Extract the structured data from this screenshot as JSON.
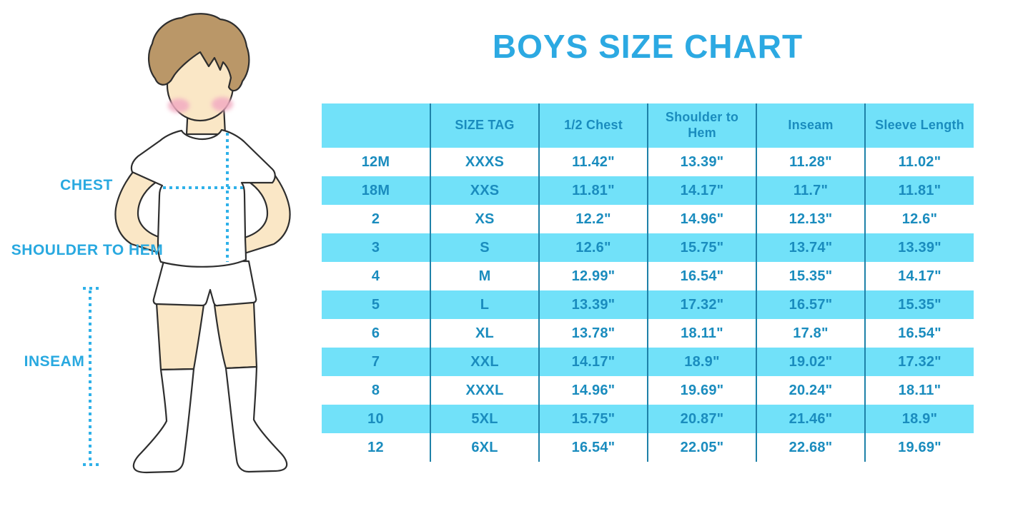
{
  "title": "BOYS SIZE CHART",
  "colors": {
    "title_text": "#2CA9E2",
    "label_text": "#29A9E0",
    "table_text": "#1A8CBE",
    "row_stripe": "#71E1F9",
    "column_divider": "#1E81A8",
    "dotted_line": "#2FB1E9",
    "skin": "#FAE7C6",
    "hair": "#BA9768",
    "blush": "#F2ACC2",
    "outline": "#2e2e2e"
  },
  "figure": {
    "description": "faceless cartoon boy in white t-shirt, shorts and knee socks with dotted measurement guides",
    "labels": [
      {
        "id": "chest",
        "text": "CHEST"
      },
      {
        "id": "shoulder_to_hem",
        "text": "SHOULDER TO HEM"
      },
      {
        "id": "inseam",
        "text": "INSEAM"
      }
    ]
  },
  "table": {
    "columns": [
      "",
      "SIZE TAG",
      "1/2 Chest",
      "Shoulder to Hem",
      "Inseam",
      "Sleeve Length"
    ],
    "rows": [
      [
        "12M",
        "XXXS",
        "11.42\"",
        "13.39\"",
        "11.28\"",
        "11.02\""
      ],
      [
        "18M",
        "XXS",
        "11.81\"",
        "14.17\"",
        "11.7\"",
        "11.81\""
      ],
      [
        "2",
        "XS",
        "12.2\"",
        "14.96\"",
        "12.13\"",
        "12.6\""
      ],
      [
        "3",
        "S",
        "12.6\"",
        "15.75\"",
        "13.74\"",
        "13.39\""
      ],
      [
        "4",
        "M",
        "12.99\"",
        "16.54\"",
        "15.35\"",
        "14.17\""
      ],
      [
        "5",
        "L",
        "13.39\"",
        "17.32\"",
        "16.57\"",
        "15.35\""
      ],
      [
        "6",
        "XL",
        "13.78\"",
        "18.11\"",
        "17.8\"",
        "16.54\""
      ],
      [
        "7",
        "XXL",
        "14.17\"",
        "18.9\"",
        "19.02\"",
        "17.32\""
      ],
      [
        "8",
        "XXXL",
        "14.96\"",
        "19.69\"",
        "20.24\"",
        "18.11\""
      ],
      [
        "10",
        "5XL",
        "15.75\"",
        "20.87\"",
        "21.46\"",
        "18.9\""
      ],
      [
        "12",
        "6XL",
        "16.54\"",
        "22.05\"",
        "22.68\"",
        "19.69\""
      ]
    ]
  },
  "chart_data": {
    "type": "table",
    "title": "BOYS SIZE CHART",
    "columns": [
      "",
      "SIZE TAG",
      "1/2 Chest",
      "Shoulder to Hem",
      "Inseam",
      "Sleeve Length"
    ],
    "rows": [
      [
        "12M",
        "XXXS",
        "11.42\"",
        "13.39\"",
        "11.28\"",
        "11.02\""
      ],
      [
        "18M",
        "XXS",
        "11.81\"",
        "14.17\"",
        "11.7\"",
        "11.81\""
      ],
      [
        "2",
        "XS",
        "12.2\"",
        "14.96\"",
        "12.13\"",
        "12.6\""
      ],
      [
        "3",
        "S",
        "12.6\"",
        "15.75\"",
        "13.74\"",
        "13.39\""
      ],
      [
        "4",
        "M",
        "12.99\"",
        "16.54\"",
        "15.35\"",
        "14.17\""
      ],
      [
        "5",
        "L",
        "13.39\"",
        "17.32\"",
        "16.57\"",
        "15.35\""
      ],
      [
        "6",
        "XL",
        "13.78\"",
        "18.11\"",
        "17.8\"",
        "16.54\""
      ],
      [
        "7",
        "XXL",
        "14.17\"",
        "18.9\"",
        "19.02\"",
        "17.32\""
      ],
      [
        "8",
        "XXXL",
        "14.96\"",
        "19.69\"",
        "20.24\"",
        "18.11\""
      ],
      [
        "10",
        "5XL",
        "15.75\"",
        "20.87\"",
        "21.46\"",
        "18.9\""
      ],
      [
        "12",
        "6XL",
        "16.54\"",
        "22.05\"",
        "22.68\"",
        "19.69\""
      ]
    ],
    "measurement_labels": [
      "CHEST",
      "SHOULDER TO HEM",
      "INSEAM"
    ],
    "layout": "figure illustration left, striped data table right, no horizontal grid lines, vertical dividers only"
  }
}
